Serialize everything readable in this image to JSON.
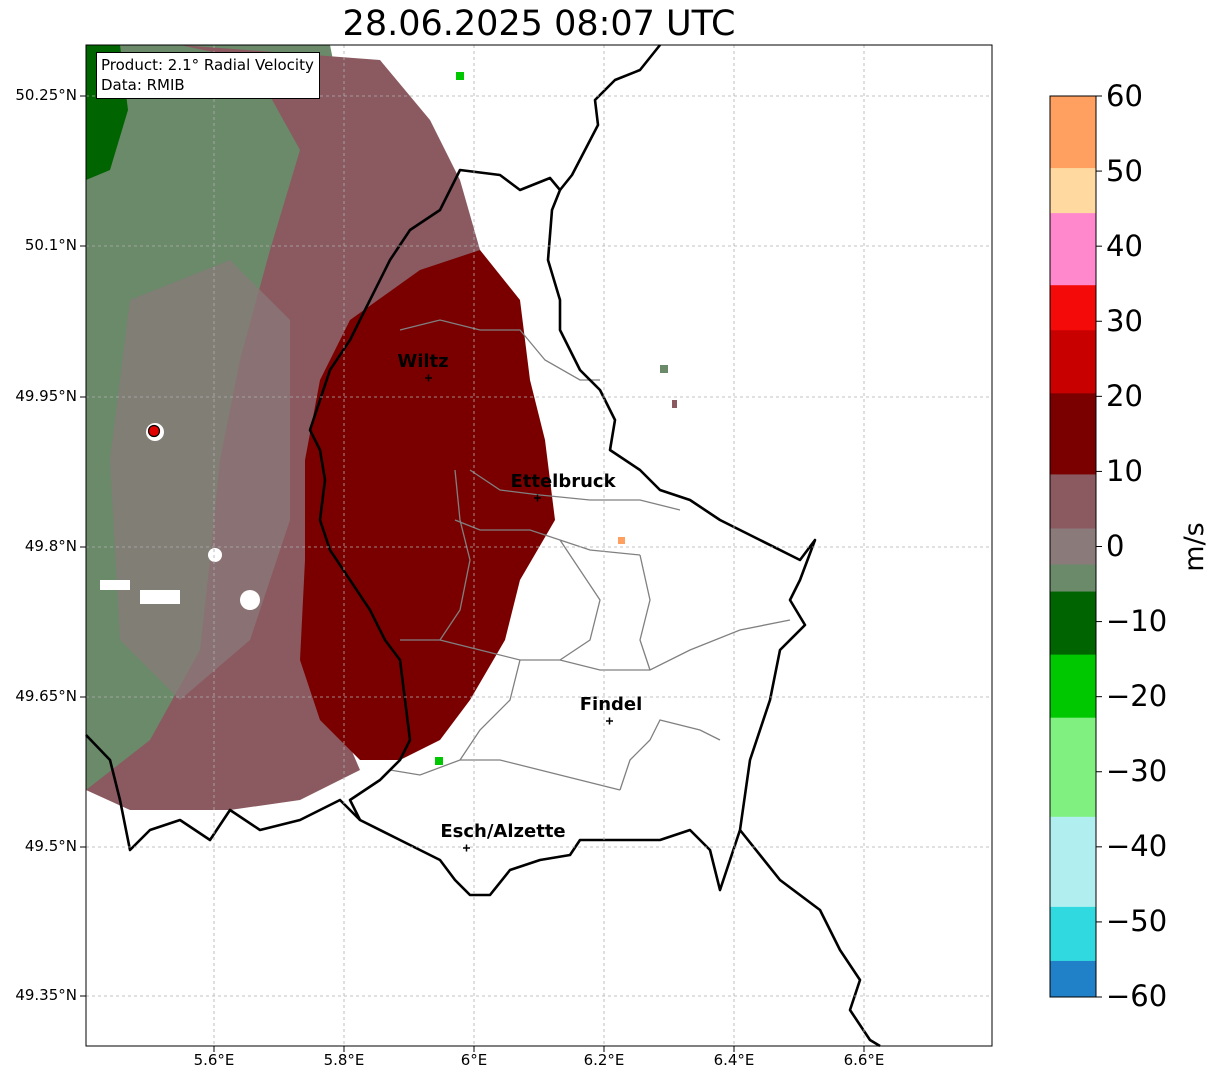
{
  "title": "28.06.2025 08:07 UTC",
  "info": {
    "product": "Product: 2.1° Radial Velocity",
    "data": "Data: RMIB"
  },
  "axes": {
    "lat_ticks": [
      "50.25°N",
      "50.1°N",
      "49.95°N",
      "49.8°N",
      "49.65°N",
      "49.5°N",
      "49.35°N"
    ],
    "lon_ticks": [
      "5.6°E",
      "5.8°E",
      "6°E",
      "6.2°E",
      "6.4°E",
      "6.6°E"
    ]
  },
  "cities": [
    {
      "name": "Wiltz"
    },
    {
      "name": "Ettelbruck"
    },
    {
      "name": "Findel"
    },
    {
      "name": "Esch/Alzette"
    }
  ],
  "colorbar": {
    "label": "m/s",
    "ticks": [
      "60",
      "50",
      "40",
      "30",
      "20",
      "10",
      "0",
      "−10",
      "−20",
      "−30",
      "−40",
      "−50",
      "−60"
    ],
    "colors": {
      "outbound_dark": "#7a0000",
      "outbound_mid": "#c80000",
      "outbound_bright": "#f50a0a",
      "pink": "#ff88cc",
      "peach": "#ffd9a0",
      "orange": "#ffa060",
      "neutral_mauve": "#8a5a60",
      "neutral_grey": "#8a7a7a",
      "inbound_grey_green": "#6a8a6a",
      "inbound_dark_green": "#006400",
      "inbound_green": "#00c800",
      "inbound_light_green": "#80f080",
      "inbound_pale_cyan": "#b0eef0",
      "inbound_cyan": "#30d8e0",
      "inbound_blue": "#2080c8"
    }
  }
}
